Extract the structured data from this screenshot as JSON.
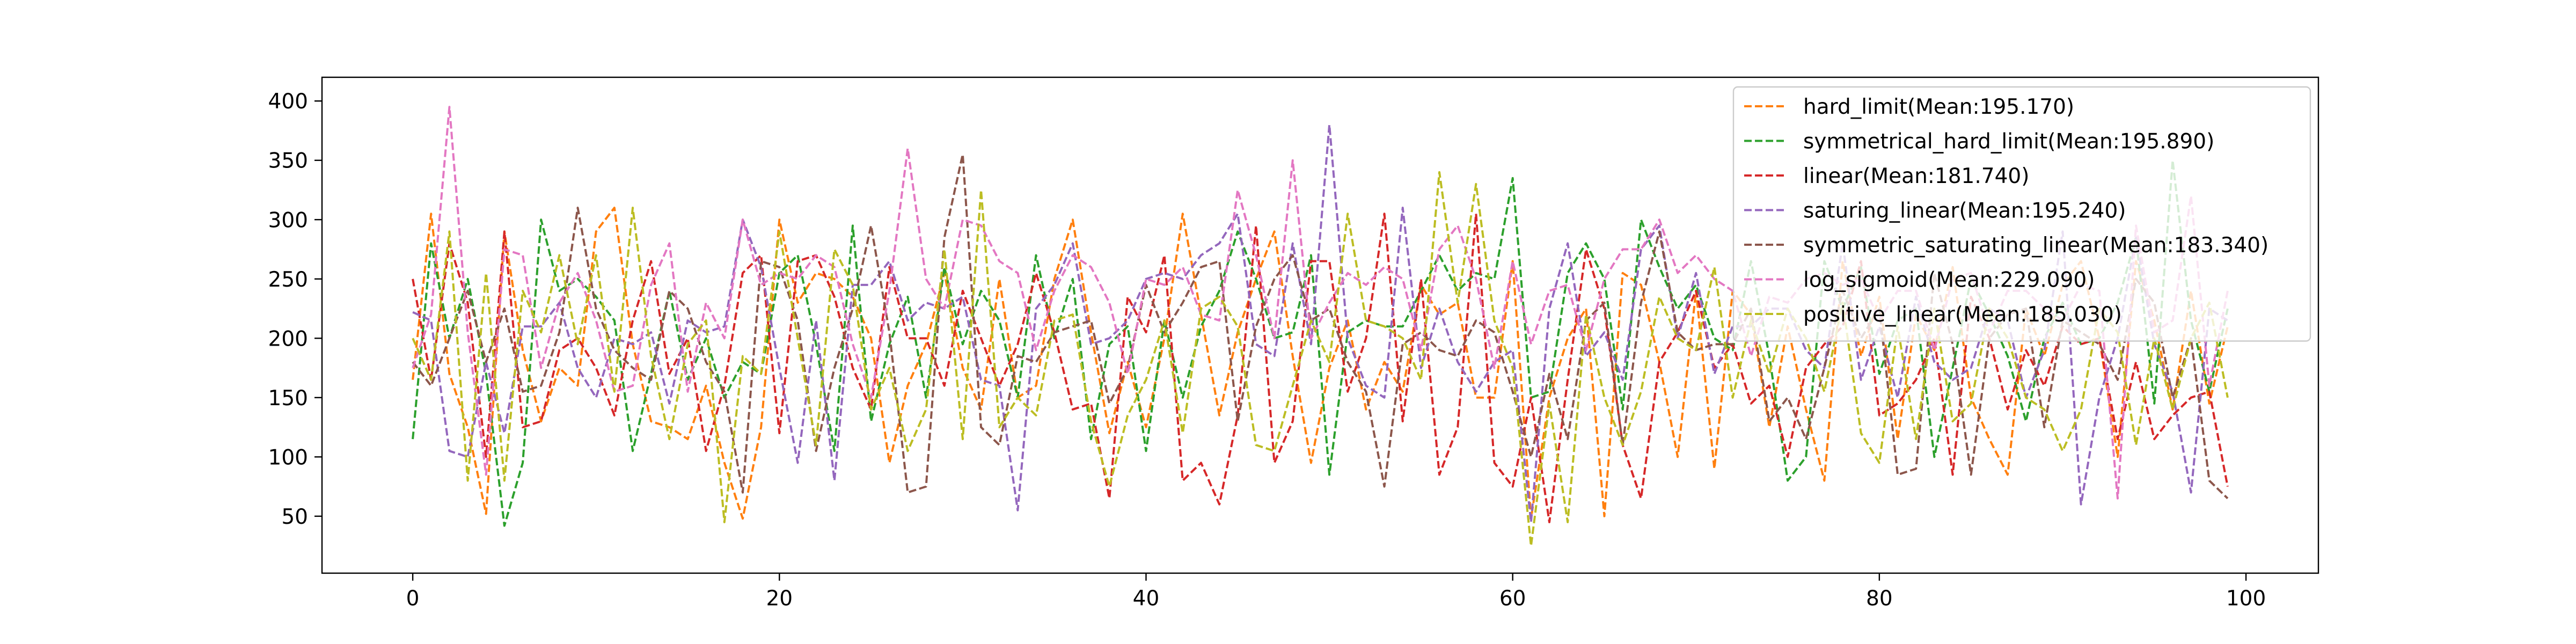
{
  "chart_data": {
    "type": "line",
    "title": "",
    "xlabel": "",
    "ylabel": "",
    "xlim": [
      -4.95,
      103.95
    ],
    "ylim": [
      2,
      420
    ],
    "x_ticks": [
      0,
      20,
      40,
      60,
      80,
      100
    ],
    "y_ticks": [
      50,
      100,
      150,
      200,
      250,
      300,
      350,
      400
    ],
    "grid": false,
    "line_style": "dashed",
    "legend_placement": "top-right",
    "series": [
      {
        "name": "hard_limit(Mean:195.170)",
        "color": "#ff7f0e",
        "values": [
          165,
          305,
          170,
          125,
          52,
          290,
          190,
          130,
          175,
          160,
          290,
          310,
          195,
          130,
          125,
          115,
          160,
          95,
          48,
          125,
          300,
          230,
          255,
          250,
          235,
          200,
          95,
          160,
          195,
          255,
          175,
          140,
          250,
          150,
          160,
          250,
          300,
          205,
          120,
          180,
          125,
          200,
          305,
          220,
          135,
          205,
          250,
          290,
          185,
          95,
          175,
          215,
          140,
          180,
          155,
          245,
          220,
          230,
          150,
          150,
          265,
          48,
          150,
          200,
          225,
          50,
          255,
          245,
          180,
          100,
          240,
          90,
          240,
          220,
          125,
          210,
          140,
          80,
          265,
          185,
          235,
          115,
          220,
          190,
          260,
          150,
          115,
          85,
          225,
          185,
          245,
          265,
          200,
          100,
          265,
          215,
          140,
          240,
          145,
          210
        ]
      },
      {
        "name": "symmetrical_hard_limit(Mean:195.890)",
        "color": "#2ca02c",
        "values": [
          115,
          280,
          200,
          250,
          170,
          42,
          95,
          300,
          240,
          250,
          235,
          215,
          105,
          170,
          240,
          165,
          200,
          150,
          180,
          170,
          255,
          270,
          195,
          105,
          295,
          130,
          195,
          235,
          150,
          260,
          195,
          240,
          215,
          150,
          270,
          200,
          250,
          115,
          195,
          210,
          105,
          215,
          150,
          210,
          240,
          290,
          250,
          200,
          205,
          270,
          85,
          205,
          215,
          210,
          210,
          240,
          270,
          240,
          255,
          250,
          335,
          150,
          155,
          255,
          280,
          250,
          140,
          300,
          260,
          225,
          245,
          200,
          190,
          265,
          185,
          80,
          100,
          265,
          225,
          260,
          170,
          215,
          225,
          100,
          175,
          250,
          220,
          185,
          130,
          200,
          230,
          195,
          200,
          230,
          285,
          145,
          350,
          215,
          155,
          225
        ]
      },
      {
        "name": "linear(Mean:181.740)",
        "color": "#d62728",
        "values": [
          250,
          165,
          280,
          230,
          100,
          290,
          125,
          130,
          190,
          200,
          175,
          135,
          215,
          265,
          170,
          200,
          105,
          160,
          255,
          270,
          120,
          265,
          270,
          235,
          175,
          140,
          260,
          200,
          200,
          160,
          240,
          200,
          160,
          195,
          255,
          205,
          140,
          145,
          65,
          235,
          205,
          270,
          80,
          95,
          60,
          135,
          295,
          95,
          130,
          265,
          265,
          155,
          200,
          305,
          130,
          250,
          85,
          125,
          305,
          95,
          75,
          150,
          45,
          165,
          275,
          225,
          110,
          65,
          180,
          205,
          240,
          175,
          195,
          145,
          160,
          100,
          175,
          195,
          210,
          265,
          135,
          145,
          165,
          200,
          85,
          235,
          200,
          140,
          190,
          160,
          210,
          195,
          200,
          115,
          180,
          115,
          135,
          150,
          155,
          75
        ]
      },
      {
        "name": "saturing_linear(Mean:195.240)",
        "color": "#9467bd",
        "values": [
          222,
          215,
          105,
          100,
          180,
          120,
          210,
          210,
          230,
          175,
          150,
          200,
          195,
          205,
          145,
          215,
          205,
          210,
          300,
          260,
          175,
          95,
          215,
          80,
          245,
          245,
          265,
          215,
          230,
          225,
          235,
          165,
          160,
          55,
          225,
          245,
          280,
          195,
          200,
          215,
          250,
          255,
          250,
          270,
          280,
          305,
          195,
          185,
          280,
          195,
          380,
          200,
          160,
          150,
          310,
          175,
          225,
          180,
          155,
          180,
          190,
          45,
          225,
          280,
          185,
          205,
          165,
          275,
          295,
          200,
          255,
          170,
          210,
          210,
          225,
          225,
          190,
          175,
          280,
          165,
          210,
          150,
          235,
          180,
          165,
          175,
          225,
          215,
          150,
          190,
          290,
          60,
          150,
          200,
          285,
          195,
          155,
          70,
          225,
          215
        ]
      },
      {
        "name": "symmetric_saturating_linear(Mean:183.340)",
        "color": "#8c564b",
        "values": [
          180,
          160,
          200,
          240,
          180,
          225,
          155,
          160,
          205,
          310,
          225,
          190,
          175,
          165,
          240,
          225,
          180,
          155,
          70,
          265,
          260,
          215,
          105,
          175,
          225,
          295,
          205,
          70,
          75,
          285,
          355,
          125,
          110,
          185,
          180,
          205,
          210,
          215,
          145,
          175,
          245,
          205,
          230,
          260,
          265,
          130,
          210,
          250,
          270,
          215,
          225,
          180,
          155,
          75,
          195,
          205,
          190,
          185,
          215,
          205,
          155,
          100,
          170,
          115,
          215,
          230,
          110,
          230,
          290,
          205,
          190,
          195,
          195,
          225,
          130,
          150,
          115,
          175,
          240,
          200,
          225,
          85,
          90,
          255,
          195,
          85,
          200,
          220,
          225,
          125,
          215,
          205,
          195,
          165,
          250,
          230,
          150,
          200,
          80,
          65
        ]
      },
      {
        "name": "log_sigmoid(Mean:229.090)",
        "color": "#e377c2",
        "values": [
          175,
          220,
          395,
          205,
          85,
          275,
          270,
          175,
          230,
          255,
          215,
          155,
          160,
          245,
          280,
          155,
          230,
          200,
          300,
          245,
          255,
          250,
          270,
          260,
          195,
          150,
          240,
          360,
          250,
          225,
          300,
          295,
          265,
          255,
          190,
          240,
          270,
          260,
          230,
          170,
          250,
          245,
          260,
          220,
          215,
          325,
          270,
          200,
          350,
          200,
          230,
          255,
          245,
          260,
          250,
          190,
          275,
          295,
          250,
          175,
          265,
          195,
          240,
          245,
          190,
          250,
          275,
          275,
          300,
          255,
          270,
          250,
          240,
          185,
          235,
          230,
          250,
          255,
          245,
          250,
          215,
          240,
          240,
          190,
          250,
          255,
          205,
          240,
          240,
          225,
          215,
          245,
          240,
          65,
          295,
          205,
          215,
          320,
          160,
          240
        ]
      },
      {
        "name": "positive_linear(Mean:185.030)",
        "color": "#bcbd22",
        "values": [
          200,
          165,
          290,
          80,
          255,
          80,
          240,
          205,
          270,
          195,
          270,
          155,
          310,
          185,
          115,
          195,
          215,
          45,
          185,
          170,
          290,
          200,
          110,
          275,
          245,
          140,
          175,
          105,
          140,
          275,
          115,
          325,
          125,
          150,
          135,
          215,
          220,
          130,
          75,
          135,
          165,
          215,
          120,
          225,
          235,
          210,
          110,
          105,
          160,
          215,
          180,
          305,
          215,
          210,
          200,
          165,
          340,
          230,
          330,
          215,
          175,
          25,
          145,
          45,
          220,
          150,
          110,
          155,
          235,
          200,
          190,
          260,
          150,
          215,
          170,
          225,
          200,
          155,
          230,
          120,
          95,
          210,
          115,
          225,
          130,
          145,
          225,
          200,
          150,
          140,
          105,
          140,
          225,
          205,
          110,
          200,
          140,
          200,
          230,
          150
        ]
      }
    ]
  }
}
